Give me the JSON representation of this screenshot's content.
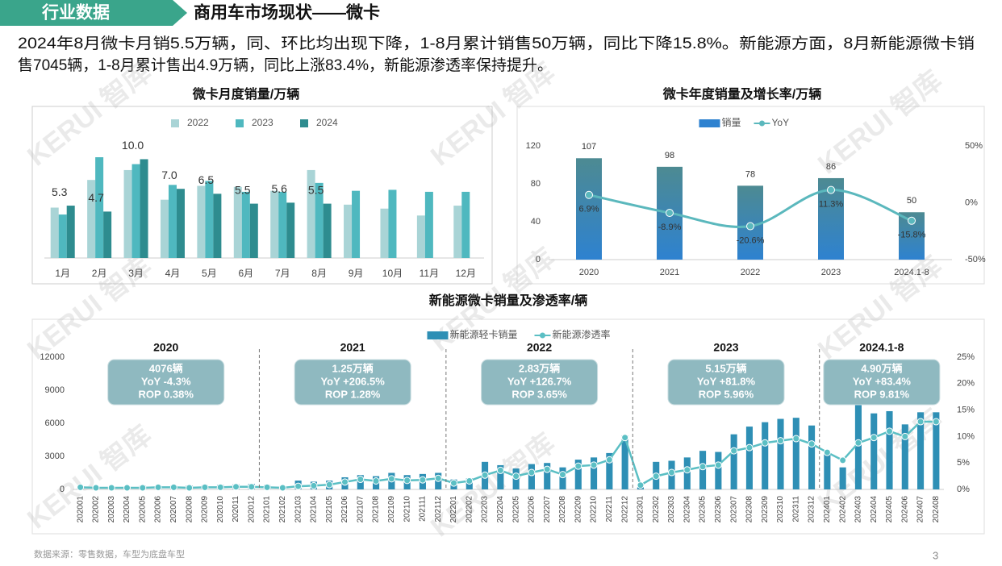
{
  "header": {
    "tag": "行业数据",
    "title": "商用车市场现状——微卡"
  },
  "summary": [
    "2024年8月微卡月销5.5万辆，同、环比均出现下降，1-8月累计销售50万辆，同比下降15.8%。新能源方面，8月新能源微卡销",
    "售7045辆，1-8月累计售出4.9万辆，同比上涨83.4%，新能源渗透率保持提升。"
  ],
  "watermark": "KERUI 智库",
  "footer": {
    "source": "数据来源：零售数据，车型为底盘车型",
    "page": "3"
  },
  "chart_data": [
    {
      "type": "bar",
      "title": "微卡月度销量/万辆",
      "categories": [
        "1月",
        "2月",
        "3月",
        "4月",
        "5月",
        "6月",
        "7月",
        "8月",
        "9月",
        "10月",
        "11月",
        "12月"
      ],
      "series": [
        {
          "name": "2022",
          "color": "#a9d4d6",
          "values": [
            5.1,
            7.9,
            8.9,
            5.9,
            7.3,
            7.2,
            6.8,
            8.9,
            5.4,
            5.0,
            4.3,
            5.3
          ]
        },
        {
          "name": "2023",
          "color": "#4fb8bf",
          "values": [
            4.4,
            10.2,
            9.5,
            7.4,
            7.8,
            6.7,
            6.7,
            7.6,
            6.8,
            6.9,
            6.7,
            6.7
          ]
        },
        {
          "name": "2024",
          "color": "#2e8c8f",
          "values": [
            5.3,
            4.7,
            10.0,
            7.0,
            6.5,
            5.5,
            5.6,
            5.5,
            null,
            null,
            null,
            null
          ],
          "value_labels": [
            "5.3",
            "4.7",
            "10.0",
            "7.0",
            "6.5",
            "5.5",
            "5.6",
            "5.5",
            null,
            null,
            null,
            null
          ]
        }
      ],
      "legend": "top"
    },
    {
      "type": "bar_line",
      "title": "微卡年度销量及增长率/万辆",
      "categories": [
        "2020",
        "2021",
        "2022",
        "2023",
        "2024.1-8"
      ],
      "series": [
        {
          "name": "销量",
          "type": "bar",
          "color": "#2e82d0",
          "values": [
            107,
            98,
            78,
            86,
            50
          ]
        },
        {
          "name": "YoY",
          "type": "line",
          "axis": "y2",
          "color": "#5bb8bd",
          "smooth": true,
          "values": [
            6.9,
            -8.9,
            -20.6,
            11.3,
            -15.8
          ],
          "value_labels": [
            "6.9%",
            "-8.9%",
            "-20.6%",
            "11.3%",
            "-15.8%"
          ]
        }
      ],
      "ylim": [
        0,
        120
      ],
      "yticks": [
        0,
        40,
        80,
        120
      ],
      "y2lim": [
        -50,
        50
      ],
      "y2ticks": [
        {
          "value": -50,
          "label": "-50%"
        },
        {
          "value": 0,
          "label": "0%"
        },
        {
          "value": 50,
          "label": "50%"
        }
      ],
      "legend": "top"
    },
    {
      "type": "bar_line",
      "title": "新能源微卡销量及渗透率/辆",
      "categories": [
        "202001",
        "202002",
        "202003",
        "202004",
        "202005",
        "202006",
        "202007",
        "202008",
        "202009",
        "202010",
        "202011",
        "202012",
        "202101",
        "202102",
        "202103",
        "202104",
        "202105",
        "202106",
        "202107",
        "202108",
        "202109",
        "202110",
        "202111",
        "202112",
        "202201",
        "202202",
        "202203",
        "202204",
        "202205",
        "202206",
        "202207",
        "202208",
        "202209",
        "202210",
        "202211",
        "202212",
        "202301",
        "202302",
        "202303",
        "202304",
        "202305",
        "202306",
        "202307",
        "202308",
        "202309",
        "202310",
        "202311",
        "202312",
        "202401",
        "202402",
        "202403",
        "202404",
        "202405",
        "202406",
        "202407",
        "202408"
      ],
      "series": [
        {
          "name": "新能源轻卡销量",
          "type": "bar",
          "color": "#2e8fb5",
          "values": [
            260,
            160,
            220,
            290,
            330,
            340,
            350,
            360,
            380,
            410,
            470,
            506,
            400,
            300,
            800,
            700,
            800,
            1100,
            1300,
            1200,
            1500,
            1300,
            1400,
            1500,
            900,
            1000,
            2500,
            2200,
            1900,
            2300,
            2400,
            2000,
            2700,
            2900,
            3300,
            4900,
            200,
            2500,
            2600,
            2900,
            3500,
            3400,
            5000,
            5700,
            6100,
            6400,
            6500,
            5800,
            3400,
            2000,
            8600,
            6900,
            7100,
            5900,
            7000,
            7000
          ]
        },
        {
          "name": "新能源渗透率",
          "type": "line",
          "axis": "y2",
          "color": "#5bbfc4",
          "values": [
            0.4,
            0.3,
            0.3,
            0.3,
            0.3,
            0.4,
            0.4,
            0.3,
            0.4,
            0.4,
            0.5,
            0.5,
            0.4,
            0.3,
            0.6,
            0.7,
            0.9,
            1.4,
            1.9,
            1.6,
            2.0,
            1.7,
            1.8,
            2.1,
            1.2,
            1.6,
            2.7,
            3.6,
            2.5,
            3.2,
            3.8,
            2.8,
            4.4,
            4.6,
            5.6,
            9.8,
            0.8,
            2.5,
            3.2,
            3.7,
            4.3,
            4.6,
            7.3,
            7.9,
            8.8,
            9.2,
            9.6,
            8.6,
            7.0,
            5.5,
            8.8,
            9.8,
            11.0,
            10.0,
            12.8,
            12.8
          ]
        }
      ],
      "ylim": [
        0,
        12000
      ],
      "yticks": [
        0,
        3000,
        6000,
        9000,
        12000
      ],
      "y2lim": [
        0,
        25
      ],
      "y2ticks": [
        {
          "value": 0,
          "label": "0%"
        },
        {
          "value": 5,
          "label": "5%"
        },
        {
          "value": 10,
          "label": "10%"
        },
        {
          "value": 15,
          "label": "15%"
        },
        {
          "value": 20,
          "label": "20%"
        },
        {
          "value": 25,
          "label": "25%"
        }
      ],
      "legend": "top",
      "segments": [
        {
          "year": "2020",
          "lines": [
            "4076辆",
            "YoY -4.3%",
            "ROP 0.38%"
          ]
        },
        {
          "year": "2021",
          "lines": [
            "1.25万辆",
            "YoY +206.5%",
            "ROP 1.28%"
          ]
        },
        {
          "year": "2022",
          "lines": [
            "2.83万辆",
            "YoY +126.7%",
            "ROP 3.65%"
          ]
        },
        {
          "year": "2023",
          "lines": [
            "5.15万辆",
            "YoY +81.8%",
            "ROP 5.96%"
          ]
        },
        {
          "year": "2024.1-8",
          "lines": [
            "4.90万辆",
            "YoY +83.4%",
            "ROP 9.81%"
          ]
        }
      ]
    }
  ]
}
